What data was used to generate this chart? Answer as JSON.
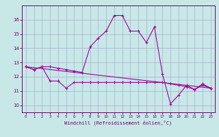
{
  "xlabel": "Windchill (Refroidissement éolien,°C)",
  "background_color": "#c8e8e8",
  "grid_color": "#aaaacc",
  "line_color": "#990099",
  "ylim": [
    9.5,
    17.0
  ],
  "xlim": [
    -0.5,
    23.5
  ],
  "yticks": [
    10,
    11,
    12,
    13,
    14,
    15,
    16
  ],
  "xticks": [
    0,
    1,
    2,
    3,
    4,
    5,
    6,
    7,
    8,
    9,
    10,
    11,
    12,
    13,
    14,
    15,
    16,
    17,
    18,
    19,
    20,
    21,
    22,
    23
  ],
  "line1_x": [
    0,
    1,
    2,
    3,
    4,
    5,
    6,
    7,
    8,
    9,
    10,
    11,
    12,
    13,
    14,
    15,
    16,
    17,
    18,
    19,
    20,
    21,
    22,
    23
  ],
  "line1_y": [
    12.7,
    12.5,
    12.7,
    11.7,
    11.7,
    11.2,
    11.6,
    11.6,
    11.6,
    11.6,
    11.6,
    11.6,
    11.6,
    11.6,
    11.6,
    11.6,
    11.6,
    11.6,
    11.5,
    11.4,
    11.3,
    11.1,
    11.4,
    11.2
  ],
  "line2_x": [
    0,
    1,
    2,
    3,
    4,
    5,
    6,
    7,
    8,
    9,
    10,
    11,
    12,
    13,
    14,
    15,
    16,
    17,
    18,
    19,
    20,
    21,
    22,
    23
  ],
  "line2_y": [
    12.7,
    12.5,
    12.7,
    12.7,
    12.6,
    12.5,
    12.4,
    12.3,
    14.1,
    14.7,
    15.2,
    16.3,
    16.3,
    15.2,
    15.2,
    14.4,
    15.5,
    12.2,
    10.1,
    10.7,
    11.4,
    11.1,
    11.5,
    11.2
  ],
  "line3_x": [
    0,
    23
  ],
  "line3_y": [
    12.7,
    11.2
  ]
}
